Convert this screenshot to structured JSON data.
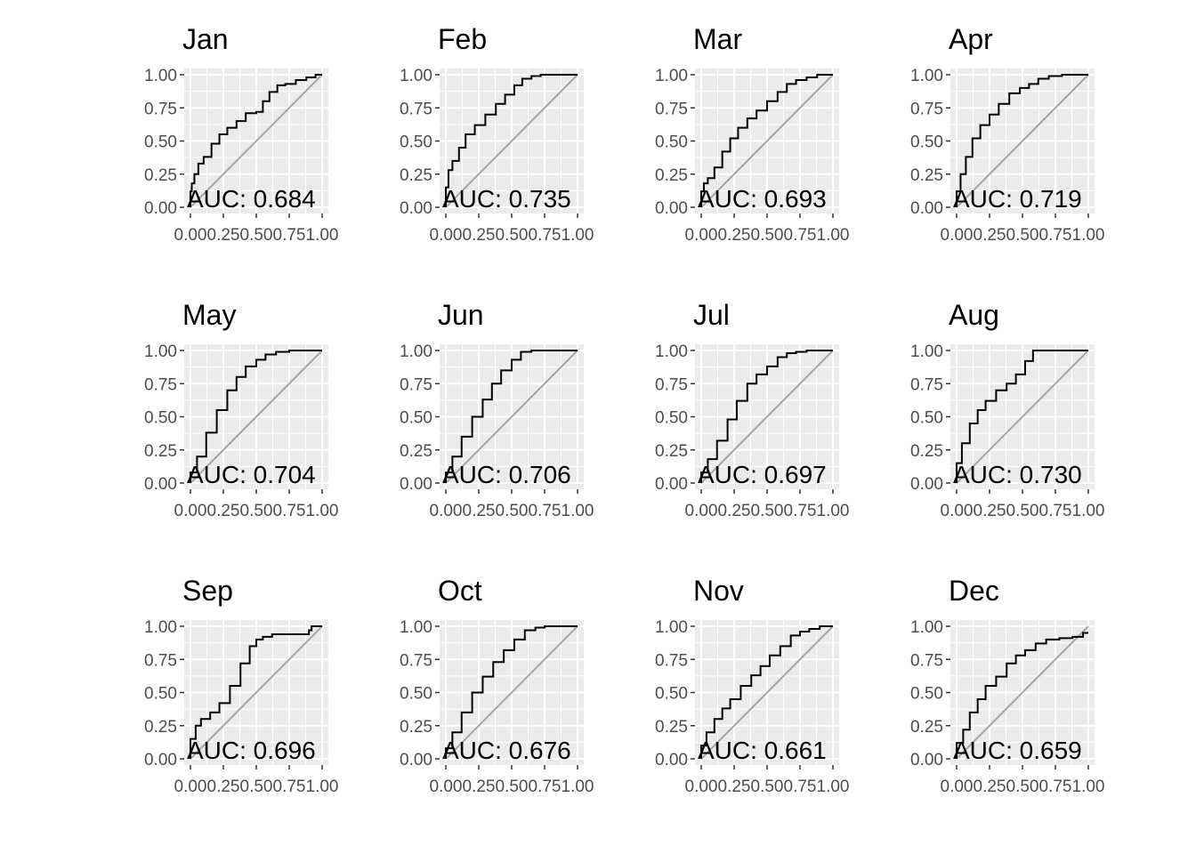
{
  "chart_data": [
    {
      "type": "line",
      "title": "Jan",
      "annotation": "AUC: 0.684",
      "xlim": [
        0,
        1
      ],
      "ylim": [
        0,
        1
      ],
      "x_ticks": [
        "0.00",
        "0.25",
        "0.50",
        "0.75",
        "1.00"
      ],
      "y_ticks": [
        "0.00",
        "0.25",
        "0.50",
        "0.75",
        "1.00"
      ],
      "series": [
        {
          "x": [
            0,
            0.01,
            0.03,
            0.06,
            0.1,
            0.16,
            0.22,
            0.28,
            0.35,
            0.42,
            0.5,
            0.55,
            0.6,
            0.66,
            0.72,
            0.8,
            0.88,
            0.95,
            1.0
          ],
          "y": [
            0,
            0.12,
            0.18,
            0.25,
            0.33,
            0.38,
            0.48,
            0.55,
            0.6,
            0.65,
            0.71,
            0.72,
            0.8,
            0.87,
            0.92,
            0.93,
            0.96,
            0.98,
            1.0
          ]
        },
        {
          "x": [
            0,
            1
          ],
          "y": [
            0,
            1
          ]
        }
      ]
    },
    {
      "type": "line",
      "title": "Feb",
      "annotation": "AUC: 0.735",
      "xlim": [
        0,
        1
      ],
      "ylim": [
        0,
        1
      ],
      "x_ticks": [
        "0.00",
        "0.25",
        "0.50",
        "0.75",
        "1.00"
      ],
      "y_ticks": [
        "0.00",
        "0.25",
        "0.50",
        "0.75",
        "1.00"
      ],
      "series": [
        {
          "x": [
            0,
            0.02,
            0.05,
            0.1,
            0.15,
            0.22,
            0.3,
            0.38,
            0.45,
            0.52,
            0.58,
            0.65,
            0.72,
            0.8,
            1.0
          ],
          "y": [
            0,
            0.15,
            0.28,
            0.35,
            0.45,
            0.55,
            0.62,
            0.7,
            0.78,
            0.85,
            0.92,
            0.97,
            0.99,
            1.0,
            1.0
          ]
        },
        {
          "x": [
            0,
            1
          ],
          "y": [
            0,
            1
          ]
        }
      ]
    },
    {
      "type": "line",
      "title": "Mar",
      "annotation": "AUC: 0.693",
      "xlim": [
        0,
        1
      ],
      "ylim": [
        0,
        1
      ],
      "x_ticks": [
        "0.00",
        "0.25",
        "0.50",
        "0.75",
        "1.00"
      ],
      "y_ticks": [
        "0.00",
        "0.25",
        "0.50",
        "0.75",
        "1.00"
      ],
      "series": [
        {
          "x": [
            0,
            0.02,
            0.05,
            0.1,
            0.16,
            0.22,
            0.28,
            0.35,
            0.42,
            0.5,
            0.58,
            0.65,
            0.72,
            0.8,
            0.88,
            0.95,
            1.0
          ],
          "y": [
            0,
            0.12,
            0.18,
            0.22,
            0.3,
            0.42,
            0.52,
            0.6,
            0.67,
            0.73,
            0.8,
            0.87,
            0.93,
            0.96,
            0.98,
            1.0,
            1.0
          ]
        },
        {
          "x": [
            0,
            1
          ],
          "y": [
            0,
            1
          ]
        }
      ]
    },
    {
      "type": "line",
      "title": "Apr",
      "annotation": "AUC: 0.719",
      "xlim": [
        0,
        1
      ],
      "ylim": [
        0,
        1
      ],
      "x_ticks": [
        "0.00",
        "0.25",
        "0.50",
        "0.75",
        "1.00"
      ],
      "y_ticks": [
        "0.00",
        "0.25",
        "0.50",
        "0.75",
        "1.00"
      ],
      "series": [
        {
          "x": [
            0,
            0.03,
            0.07,
            0.12,
            0.18,
            0.25,
            0.32,
            0.4,
            0.48,
            0.55,
            0.62,
            0.7,
            0.8,
            0.9,
            1.0
          ],
          "y": [
            0,
            0.12,
            0.25,
            0.38,
            0.52,
            0.62,
            0.7,
            0.78,
            0.86,
            0.9,
            0.93,
            0.97,
            0.99,
            1.0,
            1.0
          ]
        },
        {
          "x": [
            0,
            1
          ],
          "y": [
            0,
            1
          ]
        }
      ]
    },
    {
      "type": "line",
      "title": "May",
      "annotation": "AUC: 0.704",
      "xlim": [
        0,
        1
      ],
      "ylim": [
        0,
        1
      ],
      "x_ticks": [
        "0.00",
        "0.25",
        "0.50",
        "0.75",
        "1.00"
      ],
      "y_ticks": [
        "0.00",
        "0.25",
        "0.50",
        "0.75",
        "1.00"
      ],
      "series": [
        {
          "x": [
            0,
            0.05,
            0.12,
            0.2,
            0.28,
            0.35,
            0.42,
            0.5,
            0.57,
            0.65,
            0.75,
            0.85,
            1.0
          ],
          "y": [
            0,
            0.08,
            0.2,
            0.38,
            0.55,
            0.7,
            0.8,
            0.88,
            0.93,
            0.97,
            0.99,
            1.0,
            1.0
          ]
        },
        {
          "x": [
            0,
            1
          ],
          "y": [
            0,
            1
          ]
        }
      ]
    },
    {
      "type": "line",
      "title": "Jun",
      "annotation": "AUC: 0.706",
      "xlim": [
        0,
        1
      ],
      "ylim": [
        0,
        1
      ],
      "x_ticks": [
        "0.00",
        "0.25",
        "0.50",
        "0.75",
        "1.00"
      ],
      "y_ticks": [
        "0.00",
        "0.25",
        "0.50",
        "0.75",
        "1.00"
      ],
      "series": [
        {
          "x": [
            0,
            0.05,
            0.12,
            0.2,
            0.28,
            0.35,
            0.42,
            0.5,
            0.57,
            0.65,
            0.72,
            0.8,
            1.0
          ],
          "y": [
            0,
            0.08,
            0.2,
            0.35,
            0.5,
            0.63,
            0.75,
            0.85,
            0.93,
            0.99,
            1.0,
            1.0,
            1.0
          ]
        },
        {
          "x": [
            0,
            1
          ],
          "y": [
            0,
            1
          ]
        }
      ]
    },
    {
      "type": "line",
      "title": "Jul",
      "annotation": "AUC: 0.697",
      "xlim": [
        0,
        1
      ],
      "ylim": [
        0,
        1
      ],
      "x_ticks": [
        "0.00",
        "0.25",
        "0.50",
        "0.75",
        "1.00"
      ],
      "y_ticks": [
        "0.00",
        "0.25",
        "0.50",
        "0.75",
        "1.00"
      ],
      "series": [
        {
          "x": [
            0,
            0.05,
            0.12,
            0.2,
            0.27,
            0.35,
            0.42,
            0.5,
            0.58,
            0.65,
            0.72,
            0.8,
            0.9,
            1.0
          ],
          "y": [
            0,
            0.08,
            0.18,
            0.32,
            0.48,
            0.62,
            0.75,
            0.82,
            0.88,
            0.95,
            0.98,
            0.99,
            1.0,
            1.0
          ]
        },
        {
          "x": [
            0,
            1
          ],
          "y": [
            0,
            1
          ]
        }
      ]
    },
    {
      "type": "line",
      "title": "Aug",
      "annotation": "AUC: 0.730",
      "xlim": [
        0,
        1
      ],
      "ylim": [
        0,
        1
      ],
      "x_ticks": [
        "0.00",
        "0.25",
        "0.50",
        "0.75",
        "1.00"
      ],
      "y_ticks": [
        "0.00",
        "0.25",
        "0.50",
        "0.75",
        "1.00"
      ],
      "series": [
        {
          "x": [
            0,
            0.04,
            0.1,
            0.16,
            0.22,
            0.3,
            0.38,
            0.45,
            0.52,
            0.58,
            0.65,
            0.75,
            0.85,
            1.0
          ],
          "y": [
            0,
            0.15,
            0.3,
            0.45,
            0.55,
            0.62,
            0.7,
            0.75,
            0.82,
            0.92,
            1.0,
            1.0,
            1.0,
            1.0
          ]
        },
        {
          "x": [
            0,
            1
          ],
          "y": [
            0,
            1
          ]
        }
      ]
    },
    {
      "type": "line",
      "title": "Sep",
      "annotation": "AUC: 0.696",
      "xlim": [
        0,
        1
      ],
      "ylim": [
        0,
        1
      ],
      "x_ticks": [
        "0.00",
        "0.25",
        "0.50",
        "0.75",
        "1.00"
      ],
      "y_ticks": [
        "0.00",
        "0.25",
        "0.50",
        "0.75",
        "1.00"
      ],
      "series": [
        {
          "x": [
            0,
            0.04,
            0.08,
            0.15,
            0.22,
            0.3,
            0.38,
            0.45,
            0.5,
            0.55,
            0.62,
            0.7,
            0.8,
            0.9,
            0.92,
            1.0
          ],
          "y": [
            0,
            0.15,
            0.25,
            0.3,
            0.35,
            0.42,
            0.55,
            0.72,
            0.85,
            0.9,
            0.92,
            0.94,
            0.94,
            0.94,
            0.97,
            1.0
          ]
        },
        {
          "x": [
            0,
            1
          ],
          "y": [
            0,
            1
          ]
        }
      ]
    },
    {
      "type": "line",
      "title": "Oct",
      "annotation": "AUC: 0.676",
      "xlim": [
        0,
        1
      ],
      "ylim": [
        0,
        1
      ],
      "x_ticks": [
        "0.00",
        "0.25",
        "0.50",
        "0.75",
        "1.00"
      ],
      "y_ticks": [
        "0.00",
        "0.25",
        "0.50",
        "0.75",
        "1.00"
      ],
      "series": [
        {
          "x": [
            0,
            0.05,
            0.12,
            0.2,
            0.28,
            0.36,
            0.44,
            0.52,
            0.6,
            0.68,
            0.75,
            0.85,
            1.0
          ],
          "y": [
            0,
            0.08,
            0.2,
            0.35,
            0.5,
            0.62,
            0.73,
            0.82,
            0.9,
            0.97,
            0.99,
            1.0,
            1.0
          ]
        },
        {
          "x": [
            0,
            1
          ],
          "y": [
            0,
            1
          ]
        }
      ]
    },
    {
      "type": "line",
      "title": "Nov",
      "annotation": "AUC: 0.661",
      "xlim": [
        0,
        1
      ],
      "ylim": [
        0,
        1
      ],
      "x_ticks": [
        "0.00",
        "0.25",
        "0.50",
        "0.75",
        "1.00"
      ],
      "y_ticks": [
        "0.00",
        "0.25",
        "0.50",
        "0.75",
        "1.00"
      ],
      "series": [
        {
          "x": [
            0,
            0.04,
            0.1,
            0.16,
            0.22,
            0.3,
            0.38,
            0.45,
            0.52,
            0.6,
            0.68,
            0.75,
            0.82,
            0.9,
            1.0
          ],
          "y": [
            0,
            0.1,
            0.2,
            0.3,
            0.38,
            0.45,
            0.55,
            0.63,
            0.7,
            0.78,
            0.85,
            0.93,
            0.96,
            0.98,
            1.0
          ]
        },
        {
          "x": [
            0,
            1
          ],
          "y": [
            0,
            1
          ]
        }
      ]
    },
    {
      "type": "line",
      "title": "Dec",
      "annotation": "AUC: 0.659",
      "xlim": [
        0,
        1
      ],
      "ylim": [
        0,
        1
      ],
      "x_ticks": [
        "0.00",
        "0.25",
        "0.50",
        "0.75",
        "1.00"
      ],
      "y_ticks": [
        "0.00",
        "0.25",
        "0.50",
        "0.75",
        "1.00"
      ],
      "series": [
        {
          "x": [
            0,
            0.05,
            0.1,
            0.16,
            0.22,
            0.3,
            0.38,
            0.45,
            0.52,
            0.6,
            0.68,
            0.78,
            0.88,
            0.96,
            1.0
          ],
          "y": [
            0,
            0.12,
            0.22,
            0.35,
            0.45,
            0.55,
            0.62,
            0.72,
            0.78,
            0.82,
            0.87,
            0.9,
            0.91,
            0.92,
            0.95
          ]
        },
        {
          "x": [
            0,
            1
          ],
          "y": [
            0,
            1
          ]
        }
      ]
    }
  ],
  "colors": {
    "panel_bg": "#ebebeb",
    "grid": "#ffffff",
    "roc_line": "#000000",
    "diagonal": "#a6a6a6",
    "tick_text": "#4d4d4d",
    "tick_mark": "#333333"
  }
}
